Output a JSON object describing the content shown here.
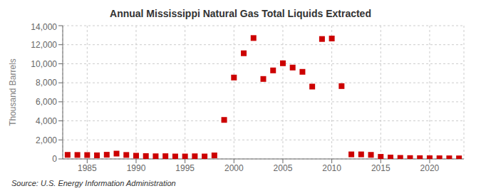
{
  "chart_data": {
    "type": "scatter",
    "title": "Annual Mississippi Natural Gas Total Liquids Extracted",
    "y_label": "Thousand Barrels",
    "annotation": "Source: U.S. Energy Information Administration",
    "color": "#cc0000",
    "marker": "square",
    "grid": true,
    "xlim": [
      1982.5,
      2023.5
    ],
    "xticks": [
      1985,
      1990,
      1995,
      2000,
      2005,
      2010,
      2015,
      2020
    ],
    "ylim": [
      0,
      14000
    ],
    "yticks": [
      0,
      {
        "value": 2000,
        "label": "2,000"
      },
      {
        "value": 4000,
        "label": "4,000"
      },
      {
        "value": 6000,
        "label": "6,000"
      },
      {
        "value": 8000,
        "label": "8,000"
      },
      {
        "value": 10000,
        "label": "10,000"
      },
      {
        "value": 12000,
        "label": "12,000"
      },
      {
        "value": 14000,
        "label": "14,000"
      }
    ],
    "x": [
      1983,
      1984,
      1985,
      1986,
      1987,
      1988,
      1989,
      1990,
      1991,
      1992,
      1993,
      1994,
      1995,
      1996,
      1997,
      1998,
      1999,
      2000,
      2001,
      2002,
      2003,
      2004,
      2005,
      2006,
      2007,
      2008,
      2009,
      2010,
      2011,
      2012,
      2013,
      2014,
      2015,
      2016,
      2017,
      2018,
      2019,
      2020,
      2021,
      2022,
      2023
    ],
    "values": [
      430,
      420,
      410,
      380,
      440,
      560,
      420,
      340,
      300,
      280,
      290,
      260,
      260,
      280,
      260,
      370,
      4100,
      8550,
      11100,
      12700,
      8400,
      9300,
      10050,
      9600,
      9150,
      7600,
      12600,
      12650,
      7650,
      480,
      480,
      430,
      220,
      150,
      110,
      90,
      80,
      75,
      70,
      65,
      60
    ]
  }
}
